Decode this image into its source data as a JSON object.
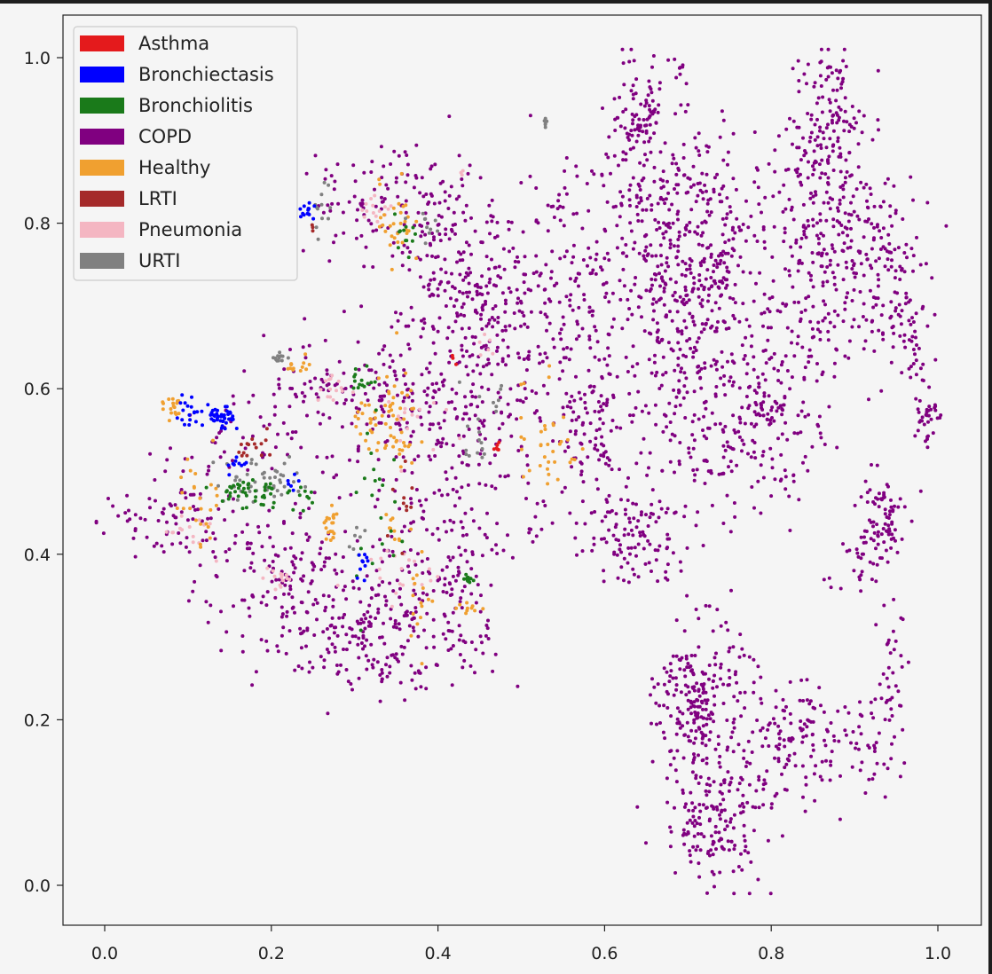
{
  "chart_data": {
    "type": "scatter",
    "title": "",
    "xlabel": "",
    "ylabel": "",
    "xlim": [
      -0.05,
      1.05
    ],
    "ylim": [
      -0.05,
      1.05
    ],
    "grid": false,
    "legend_placement": "top-left",
    "x_ticks": [
      "0.0",
      "0.2",
      "0.4",
      "0.6",
      "0.8",
      "1.0"
    ],
    "y_ticks": [
      "0.0",
      "0.2",
      "0.4",
      "0.6",
      "0.8",
      "1.0"
    ],
    "x_tick_values": [
      0.0,
      0.2,
      0.4,
      0.6,
      0.8,
      1.0
    ],
    "y_tick_values": [
      0.0,
      0.2,
      0.4,
      0.6,
      0.8,
      1.0
    ],
    "series": [
      {
        "name": "Asthma",
        "color": "#e41a1c",
        "clusters": [
          {
            "cx": 0.47,
            "cy": 0.53,
            "sx": 0.006,
            "sy": 0.003,
            "n": 6
          },
          {
            "cx": 0.42,
            "cy": 0.63,
            "sx": 0.004,
            "sy": 0.004,
            "n": 3
          }
        ]
      },
      {
        "name": "Bronchiectasis",
        "color": "#0000ff",
        "clusters": [
          {
            "cx": 0.14,
            "cy": 0.563,
            "sx": 0.008,
            "sy": 0.008,
            "n": 40
          },
          {
            "cx": 0.1,
            "cy": 0.57,
            "sx": 0.007,
            "sy": 0.012,
            "n": 18
          },
          {
            "cx": 0.243,
            "cy": 0.815,
            "sx": 0.005,
            "sy": 0.007,
            "n": 14
          },
          {
            "cx": 0.16,
            "cy": 0.51,
            "sx": 0.008,
            "sy": 0.006,
            "n": 10
          },
          {
            "cx": 0.31,
            "cy": 0.39,
            "sx": 0.005,
            "sy": 0.008,
            "n": 10
          },
          {
            "cx": 0.23,
            "cy": 0.49,
            "sx": 0.005,
            "sy": 0.005,
            "n": 6
          }
        ]
      },
      {
        "name": "Bronchiolitis",
        "color": "#1a7a1a",
        "clusters": [
          {
            "cx": 0.17,
            "cy": 0.475,
            "sx": 0.02,
            "sy": 0.01,
            "n": 45
          },
          {
            "cx": 0.435,
            "cy": 0.37,
            "sx": 0.003,
            "sy": 0.003,
            "n": 14
          },
          {
            "cx": 0.31,
            "cy": 0.61,
            "sx": 0.006,
            "sy": 0.01,
            "n": 14
          },
          {
            "cx": 0.33,
            "cy": 0.45,
            "sx": 0.02,
            "sy": 0.06,
            "n": 22
          },
          {
            "cx": 0.36,
            "cy": 0.79,
            "sx": 0.008,
            "sy": 0.01,
            "n": 12
          },
          {
            "cx": 0.24,
            "cy": 0.47,
            "sx": 0.01,
            "sy": 0.01,
            "n": 10
          }
        ]
      },
      {
        "name": "COPD",
        "color": "#800080",
        "clusters": [
          {
            "cx": 0.45,
            "cy": 0.7,
            "sx": 0.05,
            "sy": 0.05,
            "n": 260
          },
          {
            "cx": 0.56,
            "cy": 0.74,
            "sx": 0.04,
            "sy": 0.07,
            "n": 130
          },
          {
            "cx": 0.64,
            "cy": 0.93,
            "sx": 0.02,
            "sy": 0.04,
            "n": 90
          },
          {
            "cx": 0.68,
            "cy": 0.84,
            "sx": 0.04,
            "sy": 0.05,
            "n": 120
          },
          {
            "cx": 0.69,
            "cy": 0.67,
            "sx": 0.05,
            "sy": 0.09,
            "n": 320
          },
          {
            "cx": 0.73,
            "cy": 0.76,
            "sx": 0.04,
            "sy": 0.06,
            "n": 150
          },
          {
            "cx": 0.75,
            "cy": 0.55,
            "sx": 0.04,
            "sy": 0.05,
            "n": 110
          },
          {
            "cx": 0.81,
            "cy": 0.57,
            "sx": 0.03,
            "sy": 0.05,
            "n": 110
          },
          {
            "cx": 0.58,
            "cy": 0.55,
            "sx": 0.025,
            "sy": 0.05,
            "n": 110
          },
          {
            "cx": 0.87,
            "cy": 0.79,
            "sx": 0.04,
            "sy": 0.08,
            "n": 300
          },
          {
            "cx": 0.87,
            "cy": 0.93,
            "sx": 0.02,
            "sy": 0.04,
            "n": 90
          },
          {
            "cx": 0.93,
            "cy": 0.74,
            "sx": 0.03,
            "sy": 0.05,
            "n": 100
          },
          {
            "cx": 0.97,
            "cy": 0.67,
            "sx": 0.01,
            "sy": 0.03,
            "n": 40
          },
          {
            "cx": 0.985,
            "cy": 0.57,
            "sx": 0.007,
            "sy": 0.02,
            "n": 35
          },
          {
            "cx": 0.93,
            "cy": 0.44,
            "sx": 0.015,
            "sy": 0.03,
            "n": 80
          },
          {
            "cx": 0.9,
            "cy": 0.39,
            "sx": 0.02,
            "sy": 0.02,
            "n": 25
          },
          {
            "cx": 0.715,
            "cy": 0.22,
            "sx": 0.025,
            "sy": 0.05,
            "n": 230
          },
          {
            "cx": 0.73,
            "cy": 0.08,
            "sx": 0.03,
            "sy": 0.04,
            "n": 160
          },
          {
            "cx": 0.82,
            "cy": 0.17,
            "sx": 0.04,
            "sy": 0.04,
            "n": 130
          },
          {
            "cx": 0.91,
            "cy": 0.17,
            "sx": 0.025,
            "sy": 0.03,
            "n": 50
          },
          {
            "cx": 0.945,
            "cy": 0.27,
            "sx": 0.008,
            "sy": 0.04,
            "n": 30
          },
          {
            "cx": 0.61,
            "cy": 0.43,
            "sx": 0.02,
            "sy": 0.03,
            "n": 60
          },
          {
            "cx": 0.66,
            "cy": 0.42,
            "sx": 0.02,
            "sy": 0.03,
            "n": 50
          },
          {
            "cx": 0.52,
            "cy": 0.44,
            "sx": 0.01,
            "sy": 0.02,
            "n": 12
          },
          {
            "cx": 0.33,
            "cy": 0.31,
            "sx": 0.07,
            "sy": 0.04,
            "n": 260
          },
          {
            "cx": 0.21,
            "cy": 0.38,
            "sx": 0.05,
            "sy": 0.04,
            "n": 130
          },
          {
            "cx": 0.07,
            "cy": 0.44,
            "sx": 0.04,
            "sy": 0.025,
            "n": 70
          },
          {
            "cx": 0.15,
            "cy": 0.53,
            "sx": 0.04,
            "sy": 0.03,
            "n": 50
          },
          {
            "cx": 0.4,
            "cy": 0.43,
            "sx": 0.04,
            "sy": 0.08,
            "n": 150
          },
          {
            "cx": 0.36,
            "cy": 0.58,
            "sx": 0.05,
            "sy": 0.04,
            "n": 120
          },
          {
            "cx": 0.26,
            "cy": 0.61,
            "sx": 0.04,
            "sy": 0.03,
            "n": 60
          },
          {
            "cx": 0.46,
            "cy": 0.56,
            "sx": 0.03,
            "sy": 0.05,
            "n": 70
          },
          {
            "cx": 0.35,
            "cy": 0.82,
            "sx": 0.04,
            "sy": 0.04,
            "n": 80
          },
          {
            "cx": 0.41,
            "cy": 0.82,
            "sx": 0.03,
            "sy": 0.03,
            "n": 50
          },
          {
            "cx": 0.27,
            "cy": 0.83,
            "sx": 0.03,
            "sy": 0.02,
            "n": 25
          },
          {
            "cx": 0.69,
            "cy": 0.99,
            "sx": 0.004,
            "sy": 0.004,
            "n": 6
          }
        ]
      },
      {
        "name": "Healthy",
        "color": "#f0a030",
        "clusters": [
          {
            "cx": 0.08,
            "cy": 0.58,
            "sx": 0.007,
            "sy": 0.008,
            "n": 18
          },
          {
            "cx": 0.44,
            "cy": 0.335,
            "sx": 0.008,
            "sy": 0.003,
            "n": 10
          },
          {
            "cx": 0.27,
            "cy": 0.43,
            "sx": 0.006,
            "sy": 0.015,
            "n": 20
          },
          {
            "cx": 0.345,
            "cy": 0.56,
            "sx": 0.015,
            "sy": 0.03,
            "n": 50
          },
          {
            "cx": 0.35,
            "cy": 0.8,
            "sx": 0.01,
            "sy": 0.025,
            "n": 30
          },
          {
            "cx": 0.53,
            "cy": 0.55,
            "sx": 0.02,
            "sy": 0.05,
            "n": 35
          },
          {
            "cx": 0.31,
            "cy": 0.55,
            "sx": 0.01,
            "sy": 0.015,
            "n": 15
          },
          {
            "cx": 0.12,
            "cy": 0.47,
            "sx": 0.015,
            "sy": 0.03,
            "n": 25
          },
          {
            "cx": 0.23,
            "cy": 0.625,
            "sx": 0.01,
            "sy": 0.01,
            "n": 12
          },
          {
            "cx": 0.38,
            "cy": 0.36,
            "sx": 0.008,
            "sy": 0.03,
            "n": 15
          },
          {
            "cx": 0.35,
            "cy": 0.43,
            "sx": 0.01,
            "sy": 0.01,
            "n": 10
          }
        ]
      },
      {
        "name": "LRTI",
        "color": "#a52a2a",
        "clusters": [
          {
            "cx": 0.185,
            "cy": 0.53,
            "sx": 0.012,
            "sy": 0.008,
            "n": 15
          },
          {
            "cx": 0.36,
            "cy": 0.45,
            "sx": 0.01,
            "sy": 0.03,
            "n": 10
          },
          {
            "cx": 0.25,
            "cy": 0.79,
            "sx": 0.003,
            "sy": 0.003,
            "n": 3
          }
        ]
      },
      {
        "name": "Pneumonia",
        "color": "#f4b6c2",
        "clusters": [
          {
            "cx": 0.33,
            "cy": 0.815,
            "sx": 0.01,
            "sy": 0.008,
            "n": 15
          },
          {
            "cx": 0.27,
            "cy": 0.6,
            "sx": 0.01,
            "sy": 0.01,
            "n": 15
          },
          {
            "cx": 0.21,
            "cy": 0.37,
            "sx": 0.01,
            "sy": 0.01,
            "n": 15
          },
          {
            "cx": 0.1,
            "cy": 0.43,
            "sx": 0.015,
            "sy": 0.015,
            "n": 15
          },
          {
            "cx": 0.36,
            "cy": 0.56,
            "sx": 0.02,
            "sy": 0.02,
            "n": 15
          },
          {
            "cx": 0.34,
            "cy": 0.38,
            "sx": 0.03,
            "sy": 0.02,
            "n": 20
          },
          {
            "cx": 0.46,
            "cy": 0.65,
            "sx": 0.01,
            "sy": 0.01,
            "n": 6
          },
          {
            "cx": 0.43,
            "cy": 0.86,
            "sx": 0.003,
            "sy": 0.003,
            "n": 3
          }
        ]
      },
      {
        "name": "URTI",
        "color": "#808080",
        "clusters": [
          {
            "cx": 0.21,
            "cy": 0.638,
            "sx": 0.004,
            "sy": 0.003,
            "n": 12
          },
          {
            "cx": 0.53,
            "cy": 0.92,
            "sx": 0.002,
            "sy": 0.003,
            "n": 6
          },
          {
            "cx": 0.19,
            "cy": 0.49,
            "sx": 0.03,
            "sy": 0.015,
            "n": 45
          },
          {
            "cx": 0.26,
            "cy": 0.82,
            "sx": 0.005,
            "sy": 0.02,
            "n": 12
          },
          {
            "cx": 0.38,
            "cy": 0.8,
            "sx": 0.008,
            "sy": 0.008,
            "n": 10
          },
          {
            "cx": 0.44,
            "cy": 0.53,
            "sx": 0.01,
            "sy": 0.01,
            "n": 10
          },
          {
            "cx": 0.47,
            "cy": 0.59,
            "sx": 0.015,
            "sy": 0.02,
            "n": 10
          },
          {
            "cx": 0.3,
            "cy": 0.42,
            "sx": 0.005,
            "sy": 0.01,
            "n": 6
          }
        ]
      }
    ]
  }
}
